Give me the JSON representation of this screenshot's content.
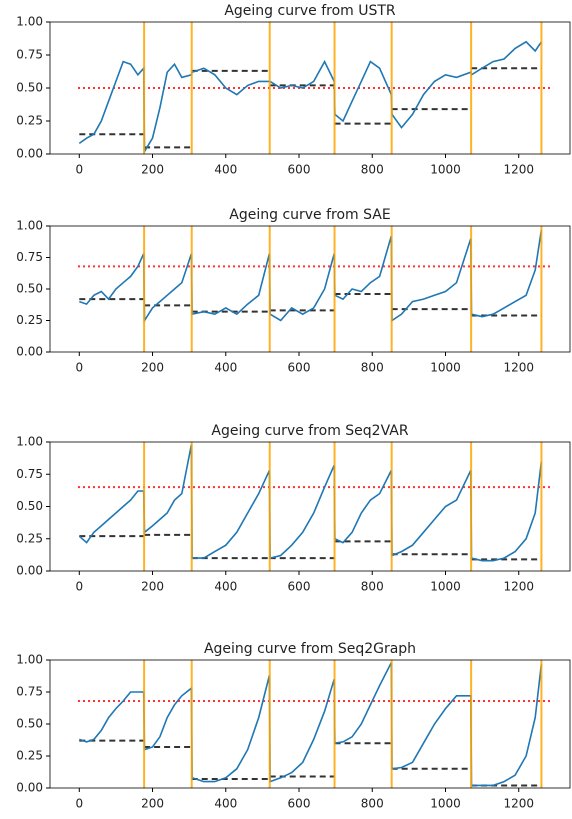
{
  "chart_data": [
    {
      "type": "line",
      "title": "Ageing curve from USTR",
      "x": [
        0,
        20,
        40,
        60,
        80,
        100,
        120,
        140,
        160,
        176,
        178,
        200,
        220,
        240,
        260,
        280,
        306,
        308,
        340,
        370,
        400,
        430,
        460,
        490,
        519,
        521,
        550,
        580,
        610,
        640,
        670,
        696,
        698,
        720,
        745,
        770,
        795,
        820,
        852,
        854,
        880,
        910,
        940,
        970,
        1000,
        1030,
        1069,
        1071,
        1100,
        1130,
        1160,
        1190,
        1220,
        1245,
        1262
      ],
      "series": [
        {
          "color": "#1f77b4",
          "values": [
            0.08,
            0.12,
            0.15,
            0.25,
            0.4,
            0.55,
            0.7,
            0.68,
            0.6,
            0.65,
            0.02,
            0.12,
            0.35,
            0.62,
            0.68,
            0.58,
            0.6,
            0.62,
            0.65,
            0.6,
            0.5,
            0.45,
            0.52,
            0.55,
            0.55,
            0.55,
            0.5,
            0.52,
            0.5,
            0.55,
            0.7,
            0.55,
            0.3,
            0.25,
            0.4,
            0.55,
            0.7,
            0.65,
            0.45,
            0.3,
            0.2,
            0.3,
            0.45,
            0.55,
            0.6,
            0.58,
            0.62,
            0.6,
            0.65,
            0.7,
            0.72,
            0.8,
            0.85,
            0.78,
            0.85
          ]
        }
      ],
      "threshold": {
        "value": 0.5,
        "color": "#ff0000"
      },
      "vlines": {
        "color": "#ffa500",
        "values": [
          177,
          307,
          520,
          697,
          853,
          1070,
          1262
        ]
      },
      "levels": {
        "color": "#333333",
        "segments": [
          {
            "x": [
              0,
              177
            ],
            "value": 0.15
          },
          {
            "x": [
              177,
              307
            ],
            "value": 0.05
          },
          {
            "x": [
              307,
              520
            ],
            "value": 0.63
          },
          {
            "x": [
              520,
              697
            ],
            "value": 0.52
          },
          {
            "x": [
              697,
              853
            ],
            "value": 0.23
          },
          {
            "x": [
              853,
              1070
            ],
            "value": 0.34
          },
          {
            "x": [
              1070,
              1262
            ],
            "value": 0.65
          }
        ]
      },
      "xlim": [
        -80,
        1340
      ],
      "ylim": [
        0,
        1
      ],
      "xticks": [
        0,
        200,
        400,
        600,
        800,
        1000,
        1200
      ],
      "yticks": [
        {
          "value": 0,
          "label": "0.00"
        },
        0.25,
        {
          "value": 0.5,
          "label": "0.50"
        },
        0.75,
        {
          "value": 1,
          "label": "1.00"
        }
      ]
    },
    {
      "type": "line",
      "title": "Ageing curve from SAE",
      "x": [
        0,
        20,
        40,
        60,
        80,
        100,
        120,
        140,
        160,
        176,
        178,
        200,
        220,
        240,
        260,
        280,
        306,
        308,
        340,
        370,
        400,
        430,
        460,
        490,
        519,
        521,
        550,
        580,
        610,
        640,
        670,
        696,
        698,
        720,
        745,
        770,
        795,
        820,
        852,
        854,
        880,
        910,
        940,
        970,
        1000,
        1030,
        1069,
        1071,
        1100,
        1130,
        1160,
        1190,
        1220,
        1245,
        1262
      ],
      "series": [
        {
          "color": "#1f77b4",
          "values": [
            0.4,
            0.38,
            0.45,
            0.48,
            0.42,
            0.5,
            0.55,
            0.6,
            0.68,
            0.78,
            0.25,
            0.35,
            0.4,
            0.45,
            0.5,
            0.55,
            0.78,
            0.3,
            0.32,
            0.3,
            0.35,
            0.3,
            0.38,
            0.45,
            0.78,
            0.3,
            0.25,
            0.35,
            0.3,
            0.35,
            0.5,
            0.78,
            0.45,
            0.42,
            0.5,
            0.48,
            0.55,
            0.6,
            0.92,
            0.25,
            0.3,
            0.4,
            0.42,
            0.45,
            0.48,
            0.55,
            0.9,
            0.3,
            0.28,
            0.3,
            0.35,
            0.4,
            0.45,
            0.65,
            0.97
          ]
        }
      ],
      "threshold": {
        "value": 0.68,
        "color": "#ff0000"
      },
      "vlines": {
        "color": "#ffa500",
        "values": [
          177,
          307,
          520,
          697,
          853,
          1070,
          1262
        ]
      },
      "levels": {
        "color": "#333333",
        "segments": [
          {
            "x": [
              0,
              177
            ],
            "value": 0.42
          },
          {
            "x": [
              177,
              307
            ],
            "value": 0.37
          },
          {
            "x": [
              307,
              520
            ],
            "value": 0.32
          },
          {
            "x": [
              520,
              697
            ],
            "value": 0.33
          },
          {
            "x": [
              697,
              853
            ],
            "value": 0.46
          },
          {
            "x": [
              853,
              1070
            ],
            "value": 0.34
          },
          {
            "x": [
              1070,
              1262
            ],
            "value": 0.29
          }
        ]
      },
      "xlim": [
        -80,
        1340
      ],
      "ylim": [
        0,
        1
      ],
      "xticks": [
        0,
        200,
        400,
        600,
        800,
        1000,
        1200
      ],
      "yticks": [
        {
          "value": 0,
          "label": "0.00"
        },
        0.25,
        {
          "value": 0.5,
          "label": "0.50"
        },
        0.75,
        {
          "value": 1,
          "label": "1.00"
        }
      ]
    },
    {
      "type": "line",
      "title": "Ageing curve from Seq2VAR",
      "x": [
        0,
        20,
        40,
        60,
        80,
        100,
        120,
        140,
        160,
        176,
        178,
        200,
        220,
        240,
        260,
        280,
        306,
        308,
        340,
        370,
        400,
        430,
        460,
        490,
        519,
        521,
        550,
        580,
        610,
        640,
        670,
        696,
        698,
        720,
        745,
        770,
        795,
        820,
        852,
        854,
        880,
        910,
        940,
        970,
        1000,
        1030,
        1069,
        1071,
        1100,
        1130,
        1160,
        1190,
        1220,
        1245,
        1262
      ],
      "series": [
        {
          "color": "#1f77b4",
          "values": [
            0.27,
            0.22,
            0.3,
            0.35,
            0.4,
            0.45,
            0.5,
            0.55,
            0.62,
            0.62,
            0.3,
            0.35,
            0.4,
            0.45,
            0.55,
            0.6,
            0.98,
            0.1,
            0.1,
            0.15,
            0.2,
            0.3,
            0.45,
            0.6,
            0.78,
            0.1,
            0.12,
            0.2,
            0.3,
            0.45,
            0.65,
            0.82,
            0.25,
            0.22,
            0.3,
            0.45,
            0.55,
            0.6,
            0.78,
            0.12,
            0.15,
            0.2,
            0.3,
            0.4,
            0.5,
            0.55,
            0.78,
            0.1,
            0.08,
            0.08,
            0.1,
            0.15,
            0.25,
            0.45,
            0.85
          ]
        }
      ],
      "threshold": {
        "value": 0.65,
        "color": "#ff0000"
      },
      "vlines": {
        "color": "#ffa500",
        "values": [
          177,
          307,
          520,
          697,
          853,
          1070,
          1262
        ]
      },
      "levels": {
        "color": "#333333",
        "segments": [
          {
            "x": [
              0,
              177
            ],
            "value": 0.27
          },
          {
            "x": [
              177,
              307
            ],
            "value": 0.28
          },
          {
            "x": [
              307,
              520
            ],
            "value": 0.1
          },
          {
            "x": [
              520,
              697
            ],
            "value": 0.1
          },
          {
            "x": [
              697,
              853
            ],
            "value": 0.23
          },
          {
            "x": [
              853,
              1070
            ],
            "value": 0.13
          },
          {
            "x": [
              1070,
              1262
            ],
            "value": 0.09
          }
        ]
      },
      "xlim": [
        -80,
        1340
      ],
      "ylim": [
        0,
        1
      ],
      "xticks": [
        0,
        200,
        400,
        600,
        800,
        1000,
        1200
      ],
      "yticks": [
        {
          "value": 0,
          "label": "0.00"
        },
        0.25,
        {
          "value": 0.5,
          "label": "0.50"
        },
        0.75,
        {
          "value": 1,
          "label": "1.00"
        }
      ]
    },
    {
      "type": "line",
      "title": "Ageing curve from Seq2Graph",
      "x": [
        0,
        20,
        40,
        60,
        80,
        100,
        120,
        140,
        160,
        176,
        178,
        200,
        220,
        240,
        260,
        280,
        306,
        308,
        340,
        370,
        400,
        430,
        460,
        490,
        519,
        521,
        550,
        580,
        610,
        640,
        670,
        696,
        698,
        720,
        745,
        770,
        795,
        820,
        852,
        854,
        880,
        910,
        940,
        970,
        1000,
        1030,
        1069,
        1071,
        1100,
        1130,
        1160,
        1190,
        1220,
        1245,
        1262
      ],
      "series": [
        {
          "color": "#1f77b4",
          "values": [
            0.38,
            0.36,
            0.38,
            0.45,
            0.55,
            0.62,
            0.68,
            0.75,
            0.75,
            0.75,
            0.3,
            0.32,
            0.4,
            0.55,
            0.65,
            0.72,
            0.78,
            0.08,
            0.05,
            0.05,
            0.08,
            0.15,
            0.3,
            0.55,
            0.88,
            0.05,
            0.08,
            0.12,
            0.2,
            0.38,
            0.6,
            0.85,
            0.35,
            0.36,
            0.4,
            0.5,
            0.65,
            0.8,
            0.98,
            0.15,
            0.16,
            0.2,
            0.35,
            0.5,
            0.62,
            0.72,
            0.72,
            0.02,
            0.02,
            0.02,
            0.05,
            0.1,
            0.25,
            0.55,
            0.97
          ]
        }
      ],
      "threshold": {
        "value": 0.68,
        "color": "#ff0000"
      },
      "vlines": {
        "color": "#ffa500",
        "values": [
          177,
          307,
          520,
          697,
          853,
          1070,
          1262
        ]
      },
      "levels": {
        "color": "#333333",
        "segments": [
          {
            "x": [
              0,
              177
            ],
            "value": 0.37
          },
          {
            "x": [
              177,
              307
            ],
            "value": 0.32
          },
          {
            "x": [
              307,
              520
            ],
            "value": 0.07
          },
          {
            "x": [
              520,
              697
            ],
            "value": 0.09
          },
          {
            "x": [
              697,
              853
            ],
            "value": 0.35
          },
          {
            "x": [
              853,
              1070
            ],
            "value": 0.15
          },
          {
            "x": [
              1070,
              1262
            ],
            "value": 0.02
          }
        ]
      },
      "xlim": [
        -80,
        1340
      ],
      "ylim": [
        0,
        1
      ],
      "xticks": [
        0,
        200,
        400,
        600,
        800,
        1000,
        1200
      ],
      "yticks": [
        {
          "value": 0,
          "label": "0.00"
        },
        0.25,
        {
          "value": 0.5,
          "label": "0.50"
        },
        0.75,
        {
          "value": 1,
          "label": "1.00"
        }
      ]
    }
  ]
}
